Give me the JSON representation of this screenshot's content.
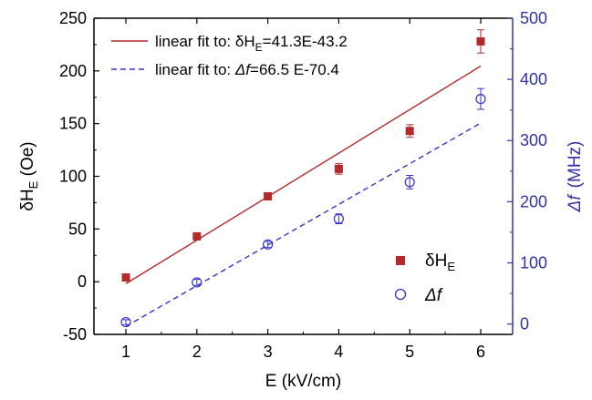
{
  "chart_data": {
    "type": "scatter",
    "x": {
      "label": "E (kV/cm)",
      "range": [
        0.55,
        6.45
      ],
      "ticks": [
        1,
        2,
        3,
        4,
        5,
        6
      ]
    },
    "y_left": {
      "label": "δH",
      "label_sub": "E",
      "label_unit": " (Oe)",
      "range": [
        -50,
        250
      ],
      "ticks": [
        -50,
        0,
        50,
        100,
        150,
        200,
        250
      ],
      "color": "#000000"
    },
    "y_right": {
      "label": "Δf",
      "label_unit": "(MHz)",
      "range": [
        -17,
        500
      ],
      "ticks": [
        0,
        100,
        200,
        300,
        400,
        500
      ],
      "color": "#3333aa"
    },
    "series": [
      {
        "name": "δH",
        "name_sub": "E",
        "axis": "left",
        "marker": "filled-square",
        "color": "#b22a2a",
        "x": [
          1,
          2,
          3,
          4,
          5,
          6
        ],
        "y": [
          4,
          43,
          81,
          107,
          143,
          228
        ],
        "err": [
          2,
          2,
          3,
          5,
          6,
          11
        ]
      },
      {
        "name": "Δf",
        "axis": "right",
        "marker": "open-circle",
        "color": "#3333cc",
        "x": [
          1,
          2,
          3,
          4,
          5,
          6
        ],
        "y": [
          3,
          68,
          130,
          172,
          232,
          368
        ],
        "err": [
          4,
          5,
          5,
          8,
          11,
          17
        ]
      }
    ],
    "fits": [
      {
        "label_prefix": "linear fit to:  δH",
        "label_sub": "E",
        "label_suffix": "=41.3E-43.2",
        "axis": "left",
        "slope": 41.3,
        "intercept": -43.2,
        "style": "solid",
        "color": "#b22a2a"
      },
      {
        "label_prefix": "linear fit to:  ",
        "label_symbol": "Δf",
        "label_suffix": "=66.5 E-70.4",
        "axis": "right",
        "slope": 66.5,
        "intercept": -70.4,
        "style": "dashed",
        "color": "#3333cc"
      }
    ],
    "legend_fits_position": "top-left",
    "legend_series_position": "bottom-right",
    "grid": false
  }
}
